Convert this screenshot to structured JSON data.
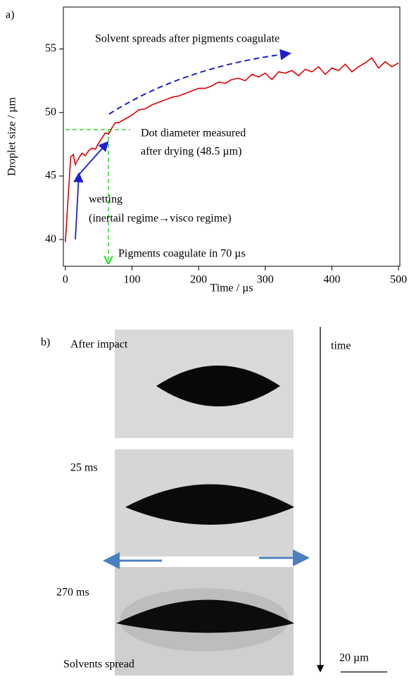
{
  "chart_data": {
    "type": "line",
    "panel_label": "a)",
    "xlabel": "Time / µs",
    "ylabel": "Droplet size / µm",
    "xlim": [
      -3,
      502
    ],
    "ylim": [
      37.9,
      58.3
    ],
    "xticks": [
      0,
      100,
      200,
      300,
      400,
      500
    ],
    "yticks": [
      40,
      45,
      50,
      55
    ],
    "annotations": [
      "Solvent spreads after pigments coagulate",
      "Dot diameter measured",
      "after drying (48.5 µm)",
      "wetting",
      "(inertail regime→visco regime)",
      "Pigments coagulate in 70 µs"
    ],
    "x": [
      0,
      5,
      8,
      12,
      15,
      20,
      25,
      30,
      35,
      40,
      45,
      50,
      55,
      60,
      65,
      70,
      75,
      80,
      90,
      100,
      110,
      120,
      130,
      140,
      150,
      160,
      170,
      180,
      190,
      200,
      210,
      220,
      230,
      240,
      250,
      260,
      270,
      280,
      290,
      300,
      310,
      320,
      330,
      340,
      350,
      360,
      370,
      380,
      390,
      400,
      410,
      420,
      430,
      440,
      450,
      460,
      470,
      480,
      490,
      500
    ],
    "series": [
      {
        "color": "#e00000",
        "values": [
          39.8,
          44,
          46.5,
          46.7,
          45.9,
          46.4,
          46.8,
          46.6,
          47,
          47.2,
          47.1,
          47.6,
          48.0,
          48.4,
          48.3,
          48.8,
          49.2,
          49.2,
          49.5,
          49.8,
          50.2,
          50.3,
          50.6,
          50.8,
          51.0,
          51.2,
          51.3,
          51.5,
          51.7,
          51.9,
          51.9,
          52.1,
          52.4,
          52.3,
          52.6,
          52.7,
          52.5,
          53.0,
          52.8,
          53.1,
          52.6,
          53.2,
          53.1,
          53.3,
          52.9,
          53.4,
          53.2,
          53.6,
          53.0,
          53.5,
          53.3,
          53.8,
          53.2,
          53.6,
          53.9,
          54.3,
          53.5,
          54.0,
          53.6,
          53.9
        ]
      }
    ]
  },
  "panel_b": {
    "panel_label": "b)",
    "frames": [
      "After impact",
      "25 ms",
      "270 ms"
    ],
    "spread_label": "Solvents spread",
    "time_label": "time",
    "scale_bar": "20 µm"
  }
}
